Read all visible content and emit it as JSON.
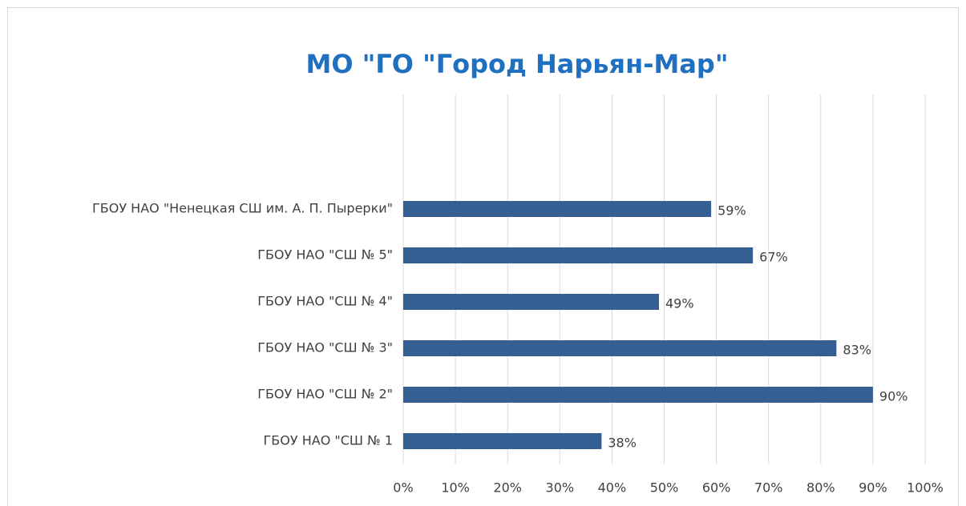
{
  "chart_data": {
    "type": "bar",
    "orientation": "horizontal",
    "title": "МО \"ГО \"Город Нарьян-Мар\"",
    "categories": [
      "ГБОУ НАО \"Ненецкая СШ им. А. П. Пырерки\"",
      "ГБОУ НАО \"СШ № 5\"",
      "ГБОУ НАО \"СШ № 4\"",
      "ГБОУ НАО \"СШ № 3\"",
      "ГБОУ НАО \"СШ № 2\"",
      "ГБОУ НАО \"СШ № 1"
    ],
    "values": [
      59,
      67,
      49,
      83,
      90,
      38
    ],
    "value_labels": [
      "59%",
      "67%",
      "49%",
      "83%",
      "90%",
      "38%"
    ],
    "color": "#355e93",
    "xlim": [
      0,
      100
    ],
    "xticks": [
      {
        "value": 0,
        "label": "0%"
      },
      {
        "value": 10,
        "label": "10%"
      },
      {
        "value": 20,
        "label": "20%"
      },
      {
        "value": 30,
        "label": "30%"
      },
      {
        "value": 40,
        "label": "40%"
      },
      {
        "value": 50,
        "label": "50%"
      },
      {
        "value": 60,
        "label": "60%"
      },
      {
        "value": 70,
        "label": "70%"
      },
      {
        "value": 80,
        "label": "80%"
      },
      {
        "value": 90,
        "label": "90%"
      },
      {
        "value": 100,
        "label": "100%"
      }
    ],
    "grid": true
  }
}
